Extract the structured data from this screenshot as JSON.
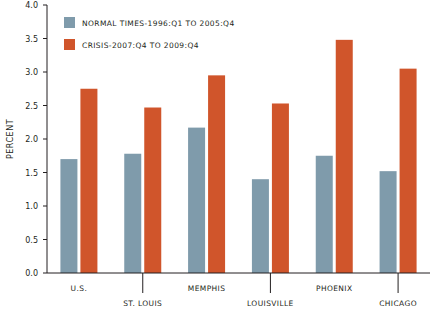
{
  "chart_data": {
    "type": "bar",
    "categories": [
      "U.S.",
      "ST. LOUIS",
      "MEMPHIS",
      "LOUISVILLE",
      "PHOENIX",
      "CHICAGO"
    ],
    "series": [
      {
        "name": "NORMAL TIMES-1996:Q1 TO 2005:Q4",
        "color": "#7f9bab",
        "values": [
          1.7,
          1.78,
          2.17,
          1.4,
          1.75,
          1.52
        ]
      },
      {
        "name": "CRISIS-2007:Q4 TO 2009:Q4",
        "color": "#d0552b",
        "values": [
          2.75,
          2.47,
          2.95,
          2.53,
          3.48,
          3.05
        ]
      }
    ],
    "y_label": "PERCENT",
    "ylim": [
      0,
      4
    ],
    "yticks": [
      {
        "value": 0,
        "label": "0.0"
      },
      0.5,
      {
        "value": 1,
        "label": "1.0"
      },
      1.5,
      {
        "value": 2,
        "label": "2.0"
      },
      2.5,
      {
        "value": 3,
        "label": "3.0"
      },
      3.5,
      {
        "value": 4,
        "label": "4.0"
      }
    ],
    "grid": false,
    "legend": "upper left"
  }
}
